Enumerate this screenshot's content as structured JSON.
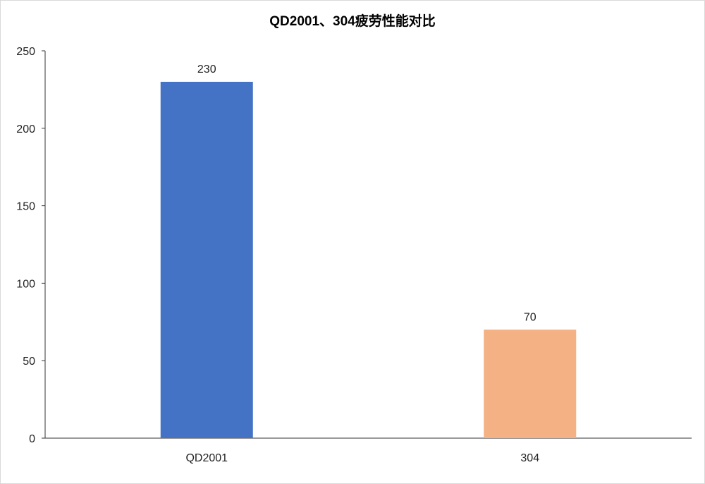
{
  "chart_data": {
    "type": "bar",
    "title": "QD2001、304疲劳性能对比",
    "categories": [
      "QD2001",
      "304"
    ],
    "values": [
      230,
      70
    ],
    "colors": [
      "#4472c4",
      "#f4b183"
    ],
    "data_labels": [
      "230",
      "70"
    ],
    "xlabel": "",
    "ylabel": "",
    "ylim": [
      0,
      250
    ],
    "yticks": [
      "0",
      "50",
      "100",
      "150",
      "200",
      "250"
    ],
    "grid": false,
    "legend": "none"
  }
}
